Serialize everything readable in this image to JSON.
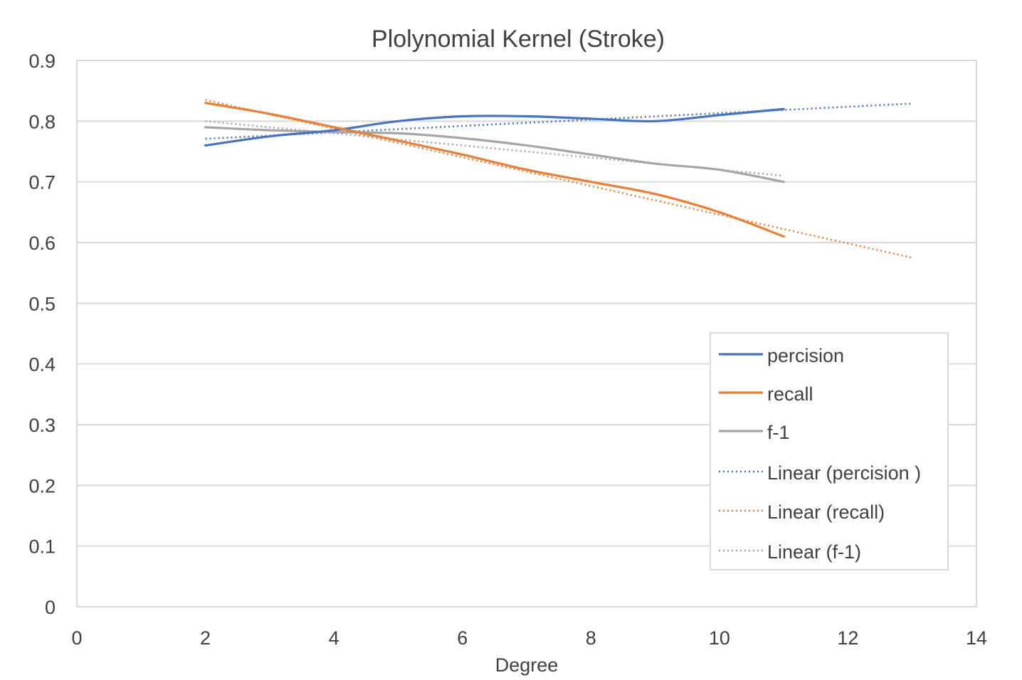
{
  "chart_data": {
    "type": "line",
    "title": "Plolynomial Kernel (Stroke)",
    "xlabel": "Degree",
    "ylabel": "",
    "xlim": [
      0,
      14
    ],
    "ylim": [
      0,
      0.9
    ],
    "x_ticks": [
      0,
      2,
      4,
      6,
      8,
      10,
      12,
      14
    ],
    "y_ticks": [
      0,
      0.1,
      0.2,
      0.3,
      0.4,
      0.5,
      0.6,
      0.7,
      0.8,
      0.9
    ],
    "x_tick_labels": [
      "0",
      "2",
      "4",
      "6",
      "8",
      "10",
      "12",
      "14"
    ],
    "y_tick_labels": [
      "0",
      "0.1",
      "0.2",
      "0.3",
      "0.4",
      "0.5",
      "0.6",
      "0.7",
      "0.8",
      "0.9"
    ],
    "grid": true,
    "legend_position": "right",
    "series": [
      {
        "name": "percision",
        "color": "#4472C4",
        "style": "solid",
        "x": [
          2,
          3,
          4,
          5,
          6,
          7,
          8,
          9,
          10,
          11
        ],
        "y": [
          0.76,
          0.775,
          0.785,
          0.8,
          0.808,
          0.808,
          0.804,
          0.8,
          0.81,
          0.82
        ]
      },
      {
        "name": "recall",
        "color": "#ED7D31",
        "style": "solid",
        "x": [
          2,
          3,
          4,
          5,
          6,
          7,
          8,
          9,
          10,
          11
        ],
        "y": [
          0.83,
          0.812,
          0.79,
          0.768,
          0.745,
          0.72,
          0.7,
          0.68,
          0.65,
          0.61
        ]
      },
      {
        "name": "f-1",
        "color": "#A5A5A5",
        "style": "solid",
        "x": [
          2,
          3,
          4,
          5,
          6,
          7,
          8,
          9,
          10,
          11
        ],
        "y": [
          0.79,
          0.785,
          0.782,
          0.78,
          0.772,
          0.76,
          0.745,
          0.73,
          0.72,
          0.7
        ]
      },
      {
        "name": "Linear (percision )",
        "color": "#4472C4",
        "style": "dotted",
        "x": [
          2,
          13
        ],
        "y": [
          0.771,
          0.829
        ]
      },
      {
        "name": "Linear (recall)",
        "color": "#ED7D31",
        "style": "dotted",
        "x": [
          2,
          13
        ],
        "y": [
          0.835,
          0.575
        ]
      },
      {
        "name": "Linear (f-1)",
        "color": "#A5A5A5",
        "style": "dotted",
        "x": [
          2,
          11
        ],
        "y": [
          0.8,
          0.71
        ]
      }
    ]
  }
}
